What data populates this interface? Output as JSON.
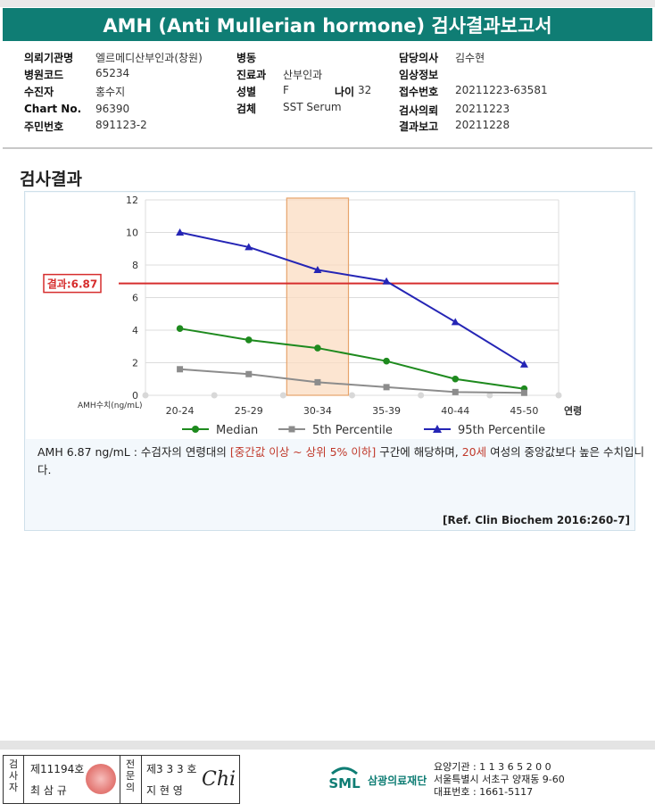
{
  "header": {
    "title": "AMH (Anti Mullerian hormone) 검사결과보고서"
  },
  "info": {
    "col1": [
      {
        "key": "의뢰기관명",
        "value": "엘르메디산부인과(창원)"
      },
      {
        "key": "병원코드",
        "value": "65234"
      },
      {
        "key": "수진자",
        "value": "홍수지"
      },
      {
        "key": "Chart No.",
        "value": "96390"
      },
      {
        "key": "주민번호",
        "value": "891123-2"
      }
    ],
    "col2": [
      {
        "key": "병동",
        "value": ""
      },
      {
        "key": "진료과",
        "value": "산부인과"
      },
      {
        "key": "성별",
        "value": "F"
      },
      {
        "key": "검체",
        "value": "SST Serum"
      }
    ],
    "age": {
      "key": "나이",
      "value": "32"
    },
    "col3": [
      {
        "key": "담당의사",
        "value": "김수현"
      },
      {
        "key": "임상정보",
        "value": ""
      },
      {
        "key": "접수번호",
        "value": "20211223-63581"
      },
      {
        "key": "검사의뢰",
        "value": "20211223"
      },
      {
        "key": "결과보고",
        "value": "20211228"
      }
    ]
  },
  "section_title": "검사결과",
  "chart_data": {
    "type": "line",
    "categories": [
      "20-24",
      "25-29",
      "30-34",
      "35-39",
      "40-44",
      "45-50"
    ],
    "x_axis_unit_label": "연령",
    "y_axis_label": "AMH수치(ng/mL)",
    "ylim": [
      0,
      12
    ],
    "yticks": [
      0,
      2,
      4,
      6,
      8,
      10,
      12
    ],
    "highlight_category": "30-34",
    "result_line": {
      "label": "결과:6.87",
      "value": 6.87,
      "color": "#d62d2d"
    },
    "series": [
      {
        "name": "Median",
        "color": "#1e8a1e",
        "marker": "circle",
        "values": [
          4.1,
          3.4,
          2.9,
          2.1,
          1.0,
          0.4
        ]
      },
      {
        "name": "5th Percentile",
        "color": "#8c8c8c",
        "marker": "square",
        "values": [
          1.6,
          1.3,
          0.8,
          0.5,
          0.2,
          0.15
        ]
      },
      {
        "name": "95th Percentile",
        "color": "#2525b5",
        "marker": "triangle",
        "values": [
          10.0,
          9.1,
          7.7,
          7.0,
          4.5,
          1.9
        ]
      }
    ],
    "legend_position": "bottom",
    "grid": "horizontal"
  },
  "description": {
    "p1": "AMH  6.87 ng/mL : 수검자의 연령대의 ",
    "hl1": "[중간값 이상 ~ 상위 5% 이하]",
    "p2": "  구간에 해당하며, ",
    "hl2": "20세",
    "p3": " 여성의 중앙값보다 높은 수치입니다."
  },
  "reference": "[Ref. Clin Biochem 2016:260-7]",
  "footer": {
    "examiner_label": "검사자",
    "examiner_no": "제11194호",
    "examiner_name": "최 삼 규",
    "doctor_label": "전문의",
    "doctor_no": "제3 3 3 호",
    "doctor_name": "지 현 영",
    "signature": "Chi",
    "logo_text": "SML",
    "org_name": "삼광의료재단",
    "contact_lines": [
      "요양기관 : 1 1 3 6 5 2 0 0",
      "서울특별시 서초구 양재동 9-60",
      "대표번호 : 1661-5117"
    ],
    "colors": {
      "brand": "#0f7d74",
      "accent": "#d62d2d"
    }
  }
}
